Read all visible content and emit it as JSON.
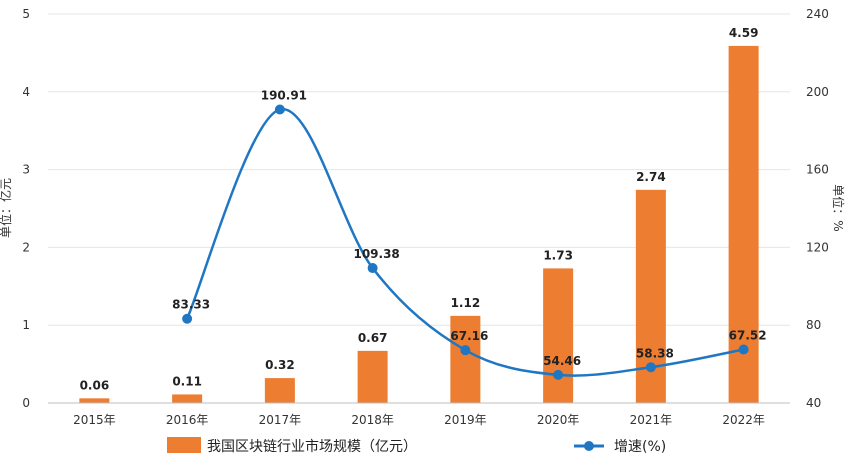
{
  "chart_data": {
    "type": "bar+line",
    "categories": [
      "2015年",
      "2016年",
      "2017年",
      "2018年",
      "2019年",
      "2020年",
      "2021年",
      "2022年"
    ],
    "series": [
      {
        "name": "我国区块链行业市场规模（亿元）",
        "type": "bar",
        "axis": "left",
        "values": [
          0.06,
          0.11,
          0.32,
          0.67,
          1.12,
          1.73,
          2.74,
          4.59
        ],
        "labels": [
          "0.06",
          "0.11",
          "0.32",
          "0.67",
          "1.12",
          "1.73",
          "2.74",
          "4.59"
        ],
        "color": "#ed7d31"
      },
      {
        "name": "增速(%)",
        "type": "line",
        "axis": "right",
        "values": [
          null,
          83.33,
          190.91,
          109.38,
          67.16,
          54.46,
          58.38,
          67.52
        ],
        "labels": [
          "",
          "83.33",
          "190.91",
          "109.38",
          "67.16",
          "54.46",
          "58.38",
          "67.52"
        ],
        "color": "#1f77c4"
      }
    ],
    "y_left": {
      "label": "单位：亿元",
      "min": 0,
      "max": 5,
      "ticks": [
        "0",
        "1",
        "2",
        "3",
        "4",
        "5"
      ]
    },
    "y_right": {
      "label": "单位：%",
      "min": 40,
      "max": 240,
      "ticks": [
        "40",
        "80",
        "120",
        "160",
        "200",
        "240"
      ]
    },
    "grid": true,
    "legend": "bottom"
  }
}
